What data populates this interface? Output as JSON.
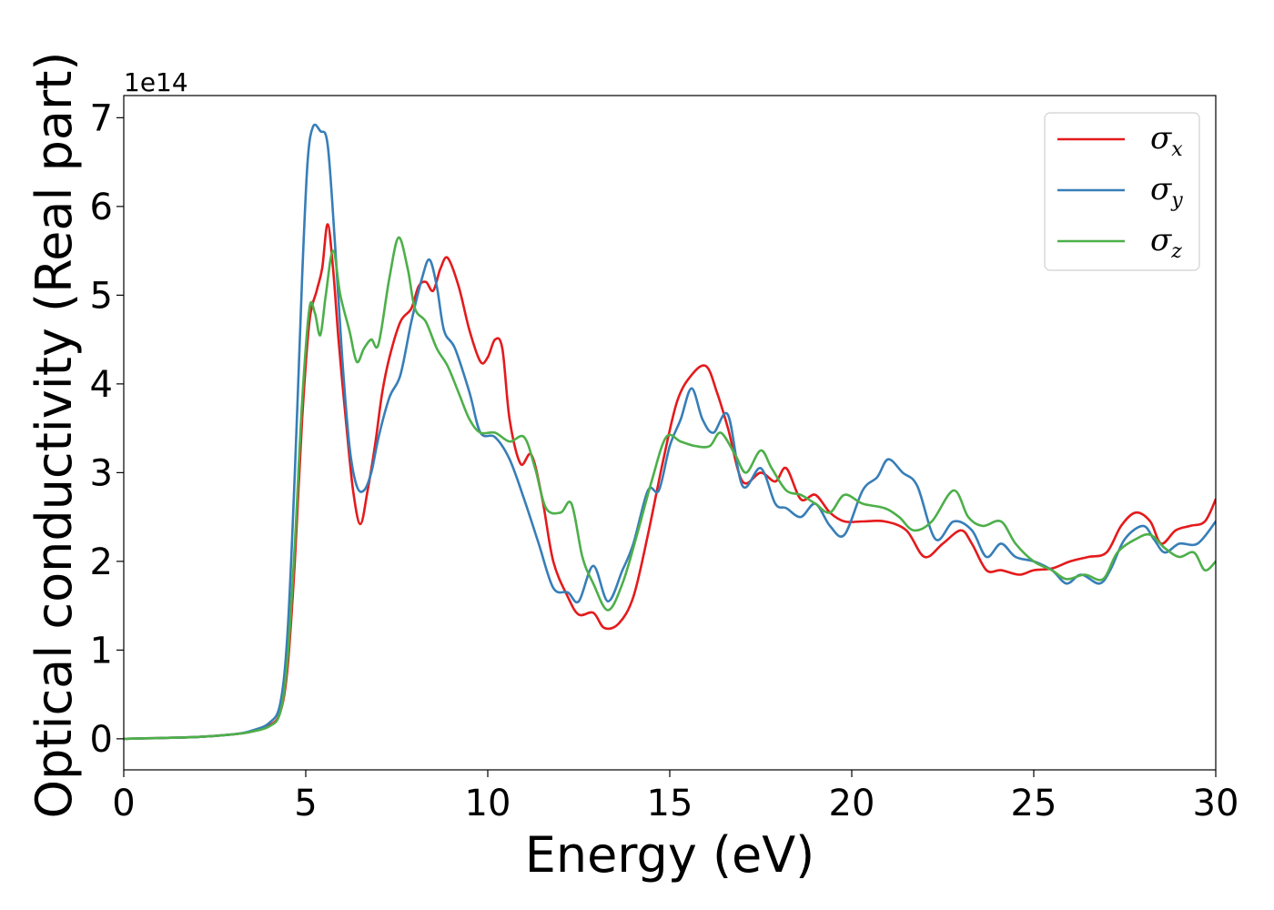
{
  "chart_data": {
    "type": "line",
    "xlabel": "Energy (eV)",
    "ylabel": "Optical conductivity (Real part)",
    "y_offset_text": "1e14",
    "xlim": [
      0,
      30
    ],
    "ylim": [
      -0.35,
      7.25
    ],
    "x_ticks": [
      0,
      5,
      10,
      15,
      20,
      25,
      30
    ],
    "y_ticks": [
      0,
      1,
      2,
      3,
      4,
      5,
      6,
      7
    ],
    "grid": false,
    "legend_position": "top-right",
    "series": [
      {
        "name": "σx",
        "symbol": "σ",
        "subscript": "x",
        "color": "#e41a1c",
        "points": [
          [
            0,
            0
          ],
          [
            2,
            0.02
          ],
          [
            3,
            0.05
          ],
          [
            3.5,
            0.08
          ],
          [
            4,
            0.15
          ],
          [
            4.3,
            0.3
          ],
          [
            4.5,
            0.8
          ],
          [
            4.7,
            2.0
          ],
          [
            4.9,
            3.6
          ],
          [
            5.1,
            4.7
          ],
          [
            5.3,
            5.05
          ],
          [
            5.45,
            5.3
          ],
          [
            5.6,
            5.8
          ],
          [
            5.75,
            5.3
          ],
          [
            5.9,
            4.5
          ],
          [
            6.1,
            3.6
          ],
          [
            6.3,
            2.8
          ],
          [
            6.5,
            2.42
          ],
          [
            6.7,
            2.8
          ],
          [
            6.9,
            3.3
          ],
          [
            7.1,
            3.9
          ],
          [
            7.3,
            4.3
          ],
          [
            7.6,
            4.7
          ],
          [
            7.9,
            4.85
          ],
          [
            8.1,
            5.1
          ],
          [
            8.3,
            5.15
          ],
          [
            8.5,
            5.05
          ],
          [
            8.7,
            5.3
          ],
          [
            8.9,
            5.42
          ],
          [
            9.2,
            5.1
          ],
          [
            9.5,
            4.6
          ],
          [
            9.8,
            4.25
          ],
          [
            10,
            4.3
          ],
          [
            10.2,
            4.5
          ],
          [
            10.4,
            4.4
          ],
          [
            10.6,
            3.6
          ],
          [
            10.9,
            3.1
          ],
          [
            11.2,
            3.2
          ],
          [
            11.5,
            2.7
          ],
          [
            11.8,
            2.0
          ],
          [
            12.2,
            1.6
          ],
          [
            12.5,
            1.4
          ],
          [
            12.9,
            1.42
          ],
          [
            13.2,
            1.25
          ],
          [
            13.6,
            1.3
          ],
          [
            14,
            1.6
          ],
          [
            14.4,
            2.3
          ],
          [
            14.8,
            3.1
          ],
          [
            15.2,
            3.8
          ],
          [
            15.6,
            4.1
          ],
          [
            16,
            4.2
          ],
          [
            16.3,
            3.9
          ],
          [
            16.6,
            3.5
          ],
          [
            17,
            2.9
          ],
          [
            17.5,
            3.0
          ],
          [
            17.9,
            2.9
          ],
          [
            18.2,
            3.05
          ],
          [
            18.6,
            2.7
          ],
          [
            19,
            2.75
          ],
          [
            19.4,
            2.55
          ],
          [
            19.8,
            2.45
          ],
          [
            20.3,
            2.45
          ],
          [
            20.9,
            2.45
          ],
          [
            21.5,
            2.35
          ],
          [
            22,
            2.05
          ],
          [
            22.5,
            2.2
          ],
          [
            23,
            2.35
          ],
          [
            23.3,
            2.2
          ],
          [
            23.7,
            1.9
          ],
          [
            24.1,
            1.9
          ],
          [
            24.6,
            1.85
          ],
          [
            25,
            1.9
          ],
          [
            25.5,
            1.92
          ],
          [
            26,
            2.0
          ],
          [
            26.5,
            2.05
          ],
          [
            27,
            2.1
          ],
          [
            27.4,
            2.4
          ],
          [
            27.8,
            2.55
          ],
          [
            28.2,
            2.45
          ],
          [
            28.5,
            2.2
          ],
          [
            28.9,
            2.35
          ],
          [
            29.3,
            2.4
          ],
          [
            29.7,
            2.45
          ],
          [
            30,
            2.7
          ]
        ]
      },
      {
        "name": "σy",
        "symbol": "σ",
        "subscript": "y",
        "color": "#377eb8",
        "points": [
          [
            0,
            0
          ],
          [
            2,
            0.02
          ],
          [
            3,
            0.05
          ],
          [
            3.5,
            0.09
          ],
          [
            4,
            0.18
          ],
          [
            4.3,
            0.4
          ],
          [
            4.5,
            1.2
          ],
          [
            4.7,
            3.0
          ],
          [
            4.9,
            5.2
          ],
          [
            5.05,
            6.5
          ],
          [
            5.2,
            6.9
          ],
          [
            5.4,
            6.85
          ],
          [
            5.6,
            6.7
          ],
          [
            5.8,
            5.6
          ],
          [
            6.0,
            4.3
          ],
          [
            6.2,
            3.3
          ],
          [
            6.4,
            2.85
          ],
          [
            6.6,
            2.8
          ],
          [
            6.8,
            3.0
          ],
          [
            7.0,
            3.4
          ],
          [
            7.3,
            3.85
          ],
          [
            7.6,
            4.1
          ],
          [
            7.9,
            4.7
          ],
          [
            8.2,
            5.2
          ],
          [
            8.4,
            5.4
          ],
          [
            8.6,
            5.1
          ],
          [
            8.8,
            4.6
          ],
          [
            9.1,
            4.4
          ],
          [
            9.5,
            3.9
          ],
          [
            9.8,
            3.45
          ],
          [
            10.2,
            3.4
          ],
          [
            10.6,
            3.15
          ],
          [
            11,
            2.7
          ],
          [
            11.4,
            2.2
          ],
          [
            11.8,
            1.7
          ],
          [
            12.2,
            1.65
          ],
          [
            12.5,
            1.55
          ],
          [
            12.9,
            1.95
          ],
          [
            13.3,
            1.55
          ],
          [
            13.7,
            1.9
          ],
          [
            14,
            2.2
          ],
          [
            14.4,
            2.8
          ],
          [
            14.7,
            2.8
          ],
          [
            15,
            3.3
          ],
          [
            15.3,
            3.6
          ],
          [
            15.6,
            3.95
          ],
          [
            15.9,
            3.6
          ],
          [
            16.2,
            3.45
          ],
          [
            16.6,
            3.65
          ],
          [
            17,
            2.85
          ],
          [
            17.5,
            3.05
          ],
          [
            17.9,
            2.65
          ],
          [
            18.2,
            2.6
          ],
          [
            18.6,
            2.5
          ],
          [
            19,
            2.65
          ],
          [
            19.4,
            2.4
          ],
          [
            19.8,
            2.3
          ],
          [
            20.3,
            2.8
          ],
          [
            20.7,
            2.95
          ],
          [
            21,
            3.15
          ],
          [
            21.4,
            3.0
          ],
          [
            21.8,
            2.85
          ],
          [
            22.3,
            2.25
          ],
          [
            22.8,
            2.45
          ],
          [
            23.3,
            2.35
          ],
          [
            23.7,
            2.05
          ],
          [
            24.1,
            2.2
          ],
          [
            24.5,
            2.05
          ],
          [
            25,
            2.0
          ],
          [
            25.5,
            1.9
          ],
          [
            25.9,
            1.75
          ],
          [
            26.3,
            1.85
          ],
          [
            26.8,
            1.75
          ],
          [
            27.1,
            1.9
          ],
          [
            27.5,
            2.25
          ],
          [
            28,
            2.4
          ],
          [
            28.3,
            2.25
          ],
          [
            28.6,
            2.1
          ],
          [
            29,
            2.2
          ],
          [
            29.5,
            2.2
          ],
          [
            30,
            2.45
          ]
        ]
      },
      {
        "name": "σz",
        "symbol": "σ",
        "subscript": "z",
        "color": "#4daf4a",
        "points": [
          [
            0,
            0
          ],
          [
            2,
            0.02
          ],
          [
            3,
            0.05
          ],
          [
            3.5,
            0.08
          ],
          [
            4,
            0.14
          ],
          [
            4.3,
            0.3
          ],
          [
            4.5,
            0.9
          ],
          [
            4.7,
            2.2
          ],
          [
            4.9,
            3.8
          ],
          [
            5.1,
            4.85
          ],
          [
            5.25,
            4.8
          ],
          [
            5.4,
            4.55
          ],
          [
            5.55,
            5.0
          ],
          [
            5.75,
            5.5
          ],
          [
            5.95,
            5.0
          ],
          [
            6.2,
            4.6
          ],
          [
            6.4,
            4.25
          ],
          [
            6.6,
            4.4
          ],
          [
            6.8,
            4.5
          ],
          [
            7.0,
            4.45
          ],
          [
            7.3,
            5.2
          ],
          [
            7.55,
            5.65
          ],
          [
            7.8,
            5.3
          ],
          [
            8.0,
            4.85
          ],
          [
            8.3,
            4.7
          ],
          [
            8.6,
            4.4
          ],
          [
            8.9,
            4.2
          ],
          [
            9.2,
            3.9
          ],
          [
            9.5,
            3.6
          ],
          [
            9.8,
            3.45
          ],
          [
            10.2,
            3.45
          ],
          [
            10.6,
            3.35
          ],
          [
            11,
            3.4
          ],
          [
            11.3,
            3.05
          ],
          [
            11.6,
            2.6
          ],
          [
            12,
            2.55
          ],
          [
            12.3,
            2.65
          ],
          [
            12.6,
            2.05
          ],
          [
            12.9,
            1.75
          ],
          [
            13.3,
            1.45
          ],
          [
            13.7,
            1.75
          ],
          [
            14.1,
            2.3
          ],
          [
            14.5,
            2.9
          ],
          [
            14.9,
            3.4
          ],
          [
            15.3,
            3.35
          ],
          [
            15.7,
            3.3
          ],
          [
            16.1,
            3.3
          ],
          [
            16.4,
            3.45
          ],
          [
            16.8,
            3.2
          ],
          [
            17.1,
            3.0
          ],
          [
            17.5,
            3.25
          ],
          [
            17.8,
            3.05
          ],
          [
            18.2,
            2.8
          ],
          [
            18.6,
            2.75
          ],
          [
            19,
            2.65
          ],
          [
            19.4,
            2.55
          ],
          [
            19.8,
            2.75
          ],
          [
            20.3,
            2.65
          ],
          [
            20.9,
            2.6
          ],
          [
            21.3,
            2.5
          ],
          [
            21.7,
            2.35
          ],
          [
            22.2,
            2.45
          ],
          [
            22.8,
            2.8
          ],
          [
            23.2,
            2.5
          ],
          [
            23.6,
            2.4
          ],
          [
            24.1,
            2.45
          ],
          [
            24.5,
            2.2
          ],
          [
            25,
            2.0
          ],
          [
            25.5,
            1.9
          ],
          [
            25.9,
            1.8
          ],
          [
            26.4,
            1.85
          ],
          [
            26.9,
            1.8
          ],
          [
            27.3,
            2.1
          ],
          [
            27.8,
            2.25
          ],
          [
            28.2,
            2.3
          ],
          [
            28.6,
            2.15
          ],
          [
            29,
            2.05
          ],
          [
            29.4,
            2.1
          ],
          [
            29.7,
            1.9
          ],
          [
            30,
            2.0
          ]
        ]
      }
    ]
  }
}
